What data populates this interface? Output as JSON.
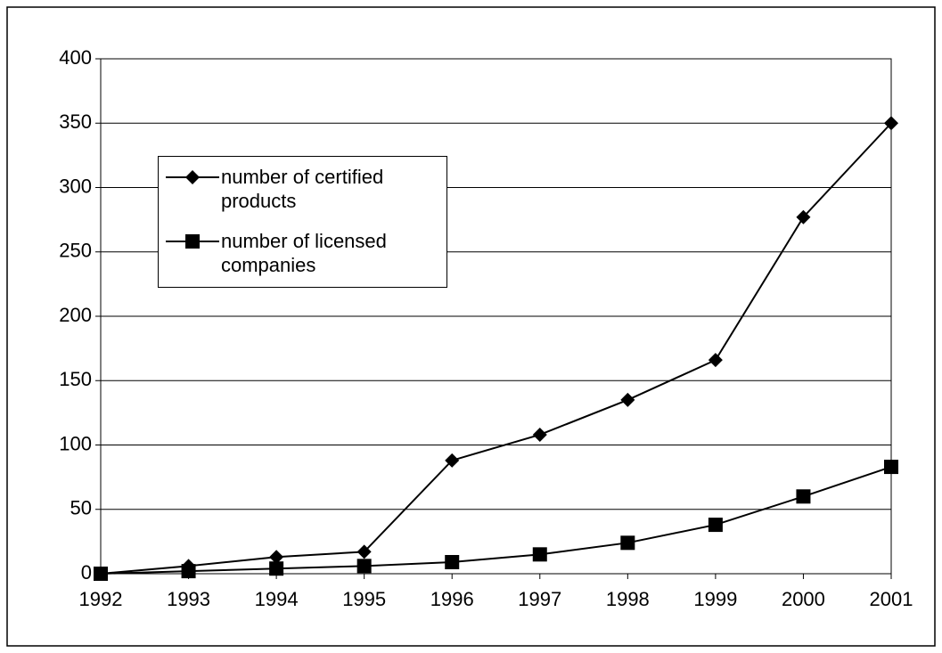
{
  "chart_data": {
    "type": "line",
    "categories": [
      "1992",
      "1993",
      "1994",
      "1995",
      "1996",
      "1997",
      "1998",
      "1999",
      "2000",
      "2001"
    ],
    "series": [
      {
        "name": "number of certified products",
        "color": "#000000",
        "marker": "diamond",
        "values": [
          0,
          6,
          13,
          17,
          88,
          108,
          135,
          166,
          277,
          350
        ]
      },
      {
        "name": "number of licensed companies",
        "color": "#000000",
        "marker": "square",
        "values": [
          0,
          2,
          4,
          6,
          9,
          15,
          24,
          38,
          60,
          83
        ]
      }
    ],
    "ylim": [
      0,
      400
    ],
    "yticks": [
      0,
      50,
      100,
      150,
      200,
      250,
      300,
      350,
      400
    ],
    "grid": true
  }
}
